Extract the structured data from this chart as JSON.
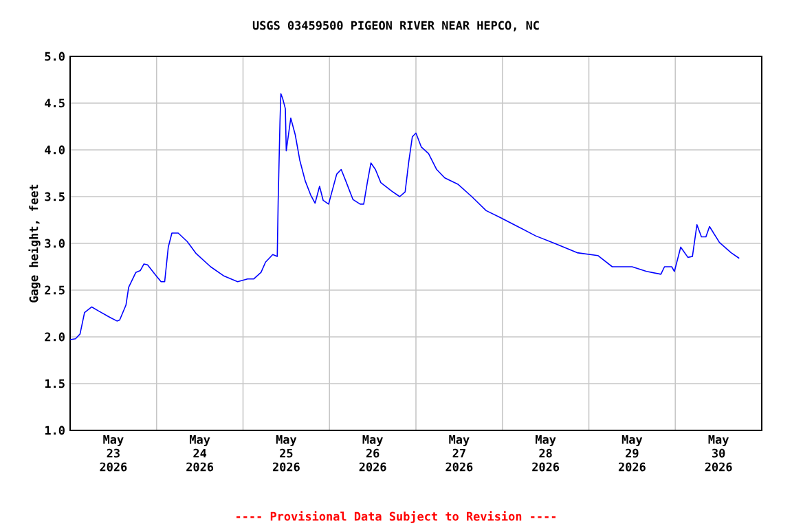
{
  "chart_data": {
    "type": "line",
    "title": "USGS 03459500 PIGEON RIVER NEAR HEPCO, NC",
    "ylabel": "Gage height, feet",
    "annotations": [
      "---- Provisional Data Subject to Revision ----"
    ],
    "xlim": [
      "2026-05-23T00:00",
      "2026-05-31T00:00"
    ],
    "ylim": [
      1.0,
      5.0
    ],
    "xticks": [
      {
        "value": "2026-05-23T00:00",
        "label": null
      },
      {
        "value": "2026-05-24T00:00",
        "label": null
      },
      {
        "value": "2026-05-25T00:00",
        "label": null
      },
      {
        "value": "2026-05-26T00:00",
        "label": null
      },
      {
        "value": "2026-05-27T00:00",
        "label": null
      },
      {
        "value": "2026-05-28T00:00",
        "label": null
      },
      {
        "value": "2026-05-29T00:00",
        "label": null
      },
      {
        "value": "2026-05-30T00:00",
        "label": null
      },
      {
        "value": "2026-05-31T00:00",
        "label": null
      },
      {
        "value": "2026-05-23T12:00",
        "label": "May 23 2026"
      },
      {
        "value": "2026-05-24T12:00",
        "label": "May 24 2026"
      },
      {
        "value": "2026-05-25T12:00",
        "label": "May 25 2026"
      },
      {
        "value": "2026-05-26T12:00",
        "label": "May 26 2026"
      },
      {
        "value": "2026-05-27T12:00",
        "label": "May 27 2026"
      },
      {
        "value": "2026-05-28T12:00",
        "label": "May 28 2026"
      },
      {
        "value": "2026-05-29T12:00",
        "label": "May 29 2026"
      },
      {
        "value": "2026-05-30T12:00",
        "label": "May 30 2026"
      }
    ],
    "yticks": [
      {
        "value": 1.0,
        "label": "1.0"
      },
      {
        "value": 1.5,
        "label": "1.5"
      },
      {
        "value": 2.0,
        "label": "2.0"
      },
      {
        "value": 2.5,
        "label": "2.5"
      },
      {
        "value": 3.0,
        "label": "3.0"
      },
      {
        "value": 3.5,
        "label": "3.5"
      },
      {
        "value": 4.0,
        "label": "4.0"
      },
      {
        "value": 4.5,
        "label": "4.5"
      },
      {
        "value": 5.0,
        "label": "5.0"
      }
    ],
    "grid": true,
    "x": [
      "2026-05-23T00:00",
      "2026-05-23T01:30",
      "2026-05-23T02:45",
      "2026-05-23T04:00",
      "2026-05-23T06:00",
      "2026-05-23T07:45",
      "2026-05-23T11:00",
      "2026-05-23T13:00",
      "2026-05-23T13:45",
      "2026-05-23T15:30",
      "2026-05-23T16:15",
      "2026-05-23T18:15",
      "2026-05-23T19:30",
      "2026-05-23T20:30",
      "2026-05-23T21:30",
      "2026-05-23T23:45",
      "2026-05-24T01:15",
      "2026-05-24T02:15",
      "2026-05-24T03:15",
      "2026-05-24T04:15",
      "2026-05-24T06:00",
      "2026-05-24T08:30",
      "2026-05-24T11:00",
      "2026-05-24T15:00",
      "2026-05-24T18:45",
      "2026-05-24T22:30",
      "2026-05-25T01:15",
      "2026-05-25T03:00",
      "2026-05-25T05:00",
      "2026-05-25T06:15",
      "2026-05-25T08:15",
      "2026-05-25T09:30",
      "2026-05-25T09:45",
      "2026-05-25T10:15",
      "2026-05-25T10:30",
      "2026-05-25T11:00",
      "2026-05-25T11:45",
      "2026-05-25T12:00",
      "2026-05-25T13:15",
      "2026-05-25T14:30",
      "2026-05-25T15:45",
      "2026-05-25T17:15",
      "2026-05-25T18:45",
      "2026-05-25T20:00",
      "2026-05-25T21:15",
      "2026-05-25T22:15",
      "2026-05-25T23:45",
      "2026-05-26T02:00",
      "2026-05-26T03:15",
      "2026-05-26T04:30",
      "2026-05-26T06:30",
      "2026-05-26T08:30",
      "2026-05-26T09:30",
      "2026-05-26T10:30",
      "2026-05-26T11:30",
      "2026-05-26T12:45",
      "2026-05-26T14:15",
      "2026-05-26T17:15",
      "2026-05-26T19:30",
      "2026-05-26T21:00",
      "2026-05-26T22:00",
      "2026-05-26T23:00",
      "2026-05-27T00:00",
      "2026-05-27T01:30",
      "2026-05-27T03:30",
      "2026-05-27T05:45",
      "2026-05-27T08:00",
      "2026-05-27T11:45",
      "2026-05-27T15:30",
      "2026-05-27T19:30",
      "2026-05-27T23:15",
      "2026-05-28T04:15",
      "2026-05-28T09:15",
      "2026-05-28T14:30",
      "2026-05-28T20:45",
      "2026-05-29T02:30",
      "2026-05-29T06:30",
      "2026-05-29T12:00",
      "2026-05-29T16:00",
      "2026-05-29T20:00",
      "2026-05-29T21:00",
      "2026-05-29T23:00",
      "2026-05-29T23:45",
      "2026-05-30T01:30",
      "2026-05-30T03:30",
      "2026-05-30T04:45",
      "2026-05-30T06:00",
      "2026-05-30T07:15",
      "2026-05-30T08:30",
      "2026-05-30T09:30",
      "2026-05-30T12:15",
      "2026-05-30T15:30",
      "2026-05-30T17:45"
    ],
    "series": [
      {
        "color": "#0000ff",
        "values": [
          1.97,
          1.98,
          2.03,
          2.26,
          2.32,
          2.28,
          2.21,
          2.17,
          2.18,
          2.34,
          2.53,
          2.69,
          2.71,
          2.78,
          2.77,
          2.66,
          2.59,
          2.59,
          2.96,
          3.11,
          3.11,
          3.02,
          2.89,
          2.75,
          2.65,
          2.59,
          2.62,
          2.62,
          2.69,
          2.8,
          2.88,
          2.86,
          3.44,
          4.29,
          4.6,
          4.55,
          4.44,
          3.99,
          4.34,
          4.16,
          3.89,
          3.67,
          3.52,
          3.43,
          3.61,
          3.46,
          3.42,
          3.74,
          3.79,
          3.67,
          3.47,
          3.42,
          3.42,
          3.65,
          3.86,
          3.79,
          3.65,
          3.56,
          3.5,
          3.55,
          3.87,
          4.14,
          4.18,
          4.03,
          3.96,
          3.79,
          3.7,
          3.63,
          3.5,
          3.35,
          3.28,
          3.18,
          3.08,
          3.0,
          2.9,
          2.87,
          2.75,
          2.75,
          2.7,
          2.67,
          2.75,
          2.75,
          2.7,
          2.96,
          2.85,
          2.86,
          3.2,
          3.07,
          3.07,
          3.18,
          3.01,
          2.9,
          2.84
        ]
      }
    ]
  }
}
